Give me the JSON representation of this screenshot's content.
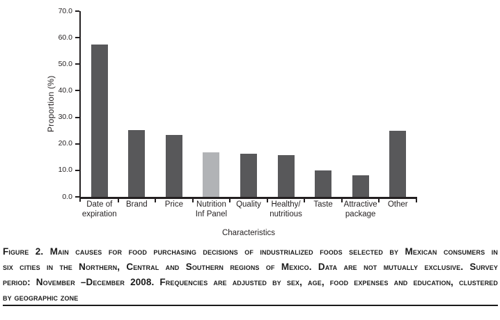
{
  "figure": {
    "caption_lines": [
      "Figure 2. Main causes for food purchasing decisions of industrialized foods selected by Mexican consumers in",
      "six cities in the Northern, Central and Southern regions of Mexico. Data are not mutually exclusive. Survey",
      "period: November –December 2008. Frequencies are adjusted by sex, age, food expenses and education, clustered",
      "by geographic zone"
    ]
  },
  "chart_data": {
    "type": "bar",
    "title": "",
    "xlabel": "Characteristics",
    "ylabel": "Proportion (%)",
    "categories": [
      "Date of\nexpiration",
      "Brand",
      "Price",
      "Nutrition\nInf Panel",
      "Quality",
      "Healthy/\nnutritious",
      "Taste",
      "Attractive\npackage",
      "Other"
    ],
    "values": [
      57.5,
      25.3,
      23.3,
      16.8,
      16.2,
      15.8,
      10.0,
      8.2,
      25.0
    ],
    "ylim": [
      0,
      70
    ],
    "ytick_values": [
      0,
      10,
      20,
      30,
      40,
      50,
      60,
      70
    ],
    "ytick_labels": [
      "0.0",
      "10.0",
      "20.0",
      "30.0",
      "40.0",
      "50.0",
      "60.0",
      "70.0"
    ],
    "grid": false,
    "legend_position": "none",
    "bar_color_default": "#58585a",
    "bar_color_highlight": "#b1b3b6",
    "highlight_index": 3
  },
  "colors": {
    "axis": "#231f20",
    "text": "#231f20",
    "caption_text": "#1b1b1b"
  }
}
